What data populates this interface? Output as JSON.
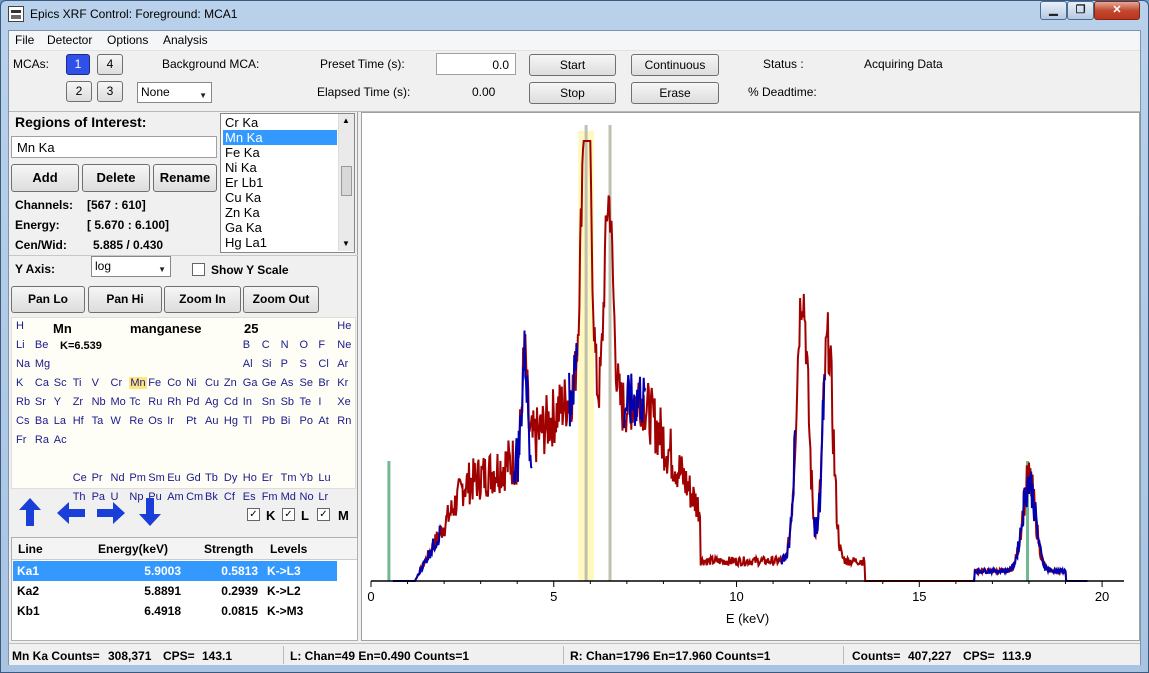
{
  "window": {
    "title": "Epics XRF Control: Foreground: MCA1",
    "min": "▁",
    "max": "❐",
    "close": "✕"
  },
  "menu": {
    "file": "File",
    "detector": "Detector",
    "options": "Options",
    "analysis": "Analysis"
  },
  "toolbar": {
    "mcas_label": "MCAs:",
    "mca_buttons": [
      "1",
      "4",
      "2",
      "3"
    ],
    "background_label": "Background MCA:",
    "background_value": "None",
    "preset_label": "Preset Time (s):",
    "preset_value": "0.0",
    "elapsed_label": "Elapsed Time (s):",
    "elapsed_value": "0.00",
    "start": "Start",
    "stop": "Stop",
    "continuous": "Continuous",
    "erase": "Erase",
    "status_label": "Status :",
    "status_value": "Acquiring Data",
    "deadtime_label": "% Deadtime:"
  },
  "roi": {
    "title": "Regions of Interest:",
    "name_value": "Mn Ka",
    "add": "Add",
    "delete": "Delete",
    "rename": "Rename",
    "channels_label": "Channels:",
    "channels_value": "[567 : 610]",
    "energy_label": "Energy:",
    "energy_value": "[ 5.670 :  6.100]",
    "cenwid_label": "Cen/Wid:",
    "cenwid_value": "5.885 /  0.430",
    "list": [
      "Cr Ka",
      "Mn Ka",
      "Fe Ka",
      "Ni Ka",
      "Er Lb1",
      "Cu Ka",
      "Zn Ka",
      "Ga Ka",
      "Hg La1"
    ],
    "selected_index": 1
  },
  "yaxis": {
    "label": "Y Axis:",
    "value": "log",
    "show_scale_label": "Show Y Scale"
  },
  "pan": {
    "pan_lo": "Pan Lo",
    "pan_hi": "Pan Hi",
    "zoom_in": "Zoom In",
    "zoom_out": "Zoom Out"
  },
  "periodic": {
    "symbol": "Mn",
    "name": "manganese",
    "number": "25",
    "k_edge": "K=6.539",
    "selected": "Mn",
    "rows": [
      [
        [
          "H",
          0
        ],
        [
          "He",
          17
        ]
      ],
      [
        [
          "Li",
          0
        ],
        [
          "Be",
          1
        ],
        [
          "B",
          12
        ],
        [
          "C",
          13
        ],
        [
          "N",
          14
        ],
        [
          "O",
          15
        ],
        [
          "F",
          16
        ],
        [
          "Ne",
          17
        ]
      ],
      [
        [
          "Na",
          0
        ],
        [
          "Mg",
          1
        ],
        [
          "Al",
          12
        ],
        [
          "Si",
          13
        ],
        [
          "P",
          14
        ],
        [
          "S",
          15
        ],
        [
          "Cl",
          16
        ],
        [
          "Ar",
          17
        ]
      ],
      [
        [
          "K",
          0
        ],
        [
          "Ca",
          1
        ],
        [
          "Sc",
          2
        ],
        [
          "Ti",
          3
        ],
        [
          "V",
          4
        ],
        [
          "Cr",
          5
        ],
        [
          "Mn",
          6
        ],
        [
          "Fe",
          7
        ],
        [
          "Co",
          8
        ],
        [
          "Ni",
          9
        ],
        [
          "Cu",
          10
        ],
        [
          "Zn",
          11
        ],
        [
          "Ga",
          12
        ],
        [
          "Ge",
          13
        ],
        [
          "As",
          14
        ],
        [
          "Se",
          15
        ],
        [
          "Br",
          16
        ],
        [
          "Kr",
          17
        ]
      ],
      [
        [
          "Rb",
          0
        ],
        [
          "Sr",
          1
        ],
        [
          "Y",
          2
        ],
        [
          "Zr",
          3
        ],
        [
          "Nb",
          4
        ],
        [
          "Mo",
          5
        ],
        [
          "Tc",
          6
        ],
        [
          "Ru",
          7
        ],
        [
          "Rh",
          8
        ],
        [
          "Pd",
          9
        ],
        [
          "Ag",
          10
        ],
        [
          "Cd",
          11
        ],
        [
          "In",
          12
        ],
        [
          "Sn",
          13
        ],
        [
          "Sb",
          14
        ],
        [
          "Te",
          15
        ],
        [
          "I",
          16
        ],
        [
          "Xe",
          17
        ]
      ],
      [
        [
          "Cs",
          0
        ],
        [
          "Ba",
          1
        ],
        [
          "La",
          2
        ],
        [
          "Hf",
          3
        ],
        [
          "Ta",
          4
        ],
        [
          "W",
          5
        ],
        [
          "Re",
          6
        ],
        [
          "Os",
          7
        ],
        [
          "Ir",
          8
        ],
        [
          "Pt",
          9
        ],
        [
          "Au",
          10
        ],
        [
          "Hg",
          11
        ],
        [
          "Tl",
          12
        ],
        [
          "Pb",
          13
        ],
        [
          "Bi",
          14
        ],
        [
          "Po",
          15
        ],
        [
          "At",
          16
        ],
        [
          "Rn",
          17
        ]
      ],
      [
        [
          "Fr",
          0
        ],
        [
          "Ra",
          1
        ],
        [
          "Ac",
          2
        ]
      ],
      [],
      [
        [
          "Ce",
          3
        ],
        [
          "Pr",
          4
        ],
        [
          "Nd",
          5
        ],
        [
          "Pm",
          6
        ],
        [
          "Sm",
          7
        ],
        [
          "Eu",
          8
        ],
        [
          "Gd",
          9
        ],
        [
          "Tb",
          10
        ],
        [
          "Dy",
          11
        ],
        [
          "Ho",
          12
        ],
        [
          "Er",
          13
        ],
        [
          "Tm",
          14
        ],
        [
          "Yb",
          15
        ],
        [
          "Lu",
          16
        ]
      ],
      [
        [
          "Th",
          3
        ],
        [
          "Pa",
          4
        ],
        [
          "U",
          5
        ],
        [
          "Np",
          6
        ],
        [
          "Pu",
          7
        ],
        [
          "Am",
          8
        ],
        [
          "Cm",
          9
        ],
        [
          "Bk",
          10
        ],
        [
          "Cf",
          11
        ],
        [
          "Es",
          12
        ],
        [
          "Fm",
          13
        ],
        [
          "Md",
          14
        ],
        [
          "No",
          15
        ],
        [
          "Lr",
          16
        ]
      ]
    ]
  },
  "lines_toggle": {
    "k": "K",
    "l": "L",
    "m": "M"
  },
  "lines_table": {
    "headers": [
      "Line",
      "Energy(keV)",
      "Strength",
      "Levels"
    ],
    "rows": [
      [
        "Ka1",
        "5.9003",
        "0.5813",
        "K->L3"
      ],
      [
        "Ka2",
        "5.8891",
        "0.2939",
        "K->L2"
      ],
      [
        "Kb1",
        "6.4918",
        "0.0815",
        "K->M3"
      ]
    ],
    "selected_index": 0
  },
  "chart_data": {
    "type": "line",
    "xlabel": "E (keV)",
    "xlim": [
      0,
      20.6
    ],
    "scale": "log",
    "x_ticks": [
      "0",
      "5",
      "10",
      "15",
      "20"
    ],
    "series": [],
    "markers": {
      "roi": [
        5.67,
        6.1
      ],
      "cursor_lines": [
        5.885,
        6.539
      ],
      "left_marker": 0.49,
      "right_marker": 17.96
    },
    "peaks_keV": [
      4.2,
      5.9,
      6.5,
      11.8,
      12.5,
      18
    ]
  },
  "status": {
    "counts_label": "Mn Ka Counts=",
    "counts_value": "308,371",
    "cps_label": "CPS=",
    "cps_value": "143.1",
    "left_cursor": "L: Chan=49 En=0.490  Counts=1",
    "right_cursor": "R: Chan=1796 En=17.960  Counts=1",
    "total_counts_label": "Counts=",
    "total_counts_value": "407,227",
    "total_cps_label": "CPS=",
    "total_cps_value": "113.9"
  },
  "colors": {
    "spectrum": "#a00000",
    "background": "#0000b0",
    "roi_fill": "#fff9c0",
    "marker": "#70b890",
    "cursor": "#c0c0b0"
  }
}
